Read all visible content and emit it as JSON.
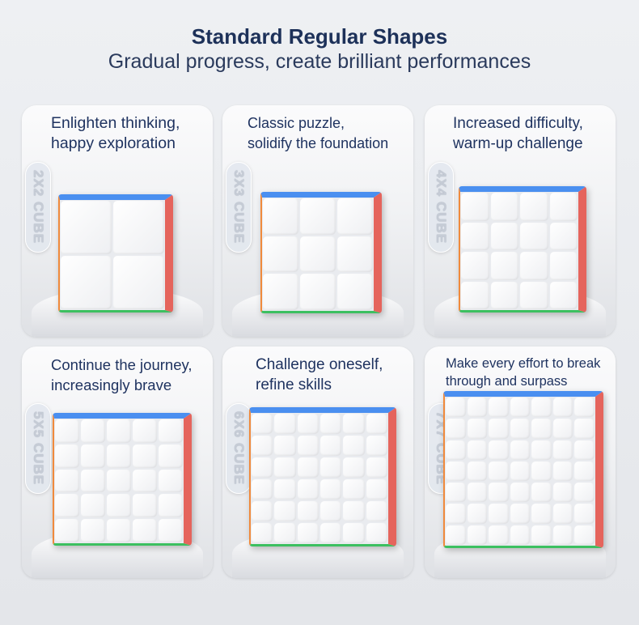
{
  "header": {
    "title": "Standard Regular Shapes",
    "subtitle": "Gradual progress, create brilliant performances"
  },
  "cards": [
    {
      "text": "Enlighten thinking,\nhappy exploration",
      "label": "2X2 CUBE",
      "n": 2
    },
    {
      "text": "Classic puzzle,\nsolidify the foundation",
      "label": "3X3 CUBE",
      "n": 3
    },
    {
      "text": "Increased difficulty,\nwarm-up challenge",
      "label": "4X4 CUBE",
      "n": 4
    },
    {
      "text": "Continue the journey,\nincreasingly brave",
      "label": "5X5 CUBE",
      "n": 5
    },
    {
      "text": "Challenge oneself,\nrefine skills",
      "label": "6X6 CUBE",
      "n": 6
    },
    {
      "text": "Make every effort to break\nthrough and surpass",
      "label": "7X7 CUBE",
      "n": 7
    }
  ],
  "colors": {
    "title": "#1d3159",
    "top_face": "#4a8ff0",
    "side_face": "#e5645c",
    "bottom_edge": "#3cc060"
  }
}
